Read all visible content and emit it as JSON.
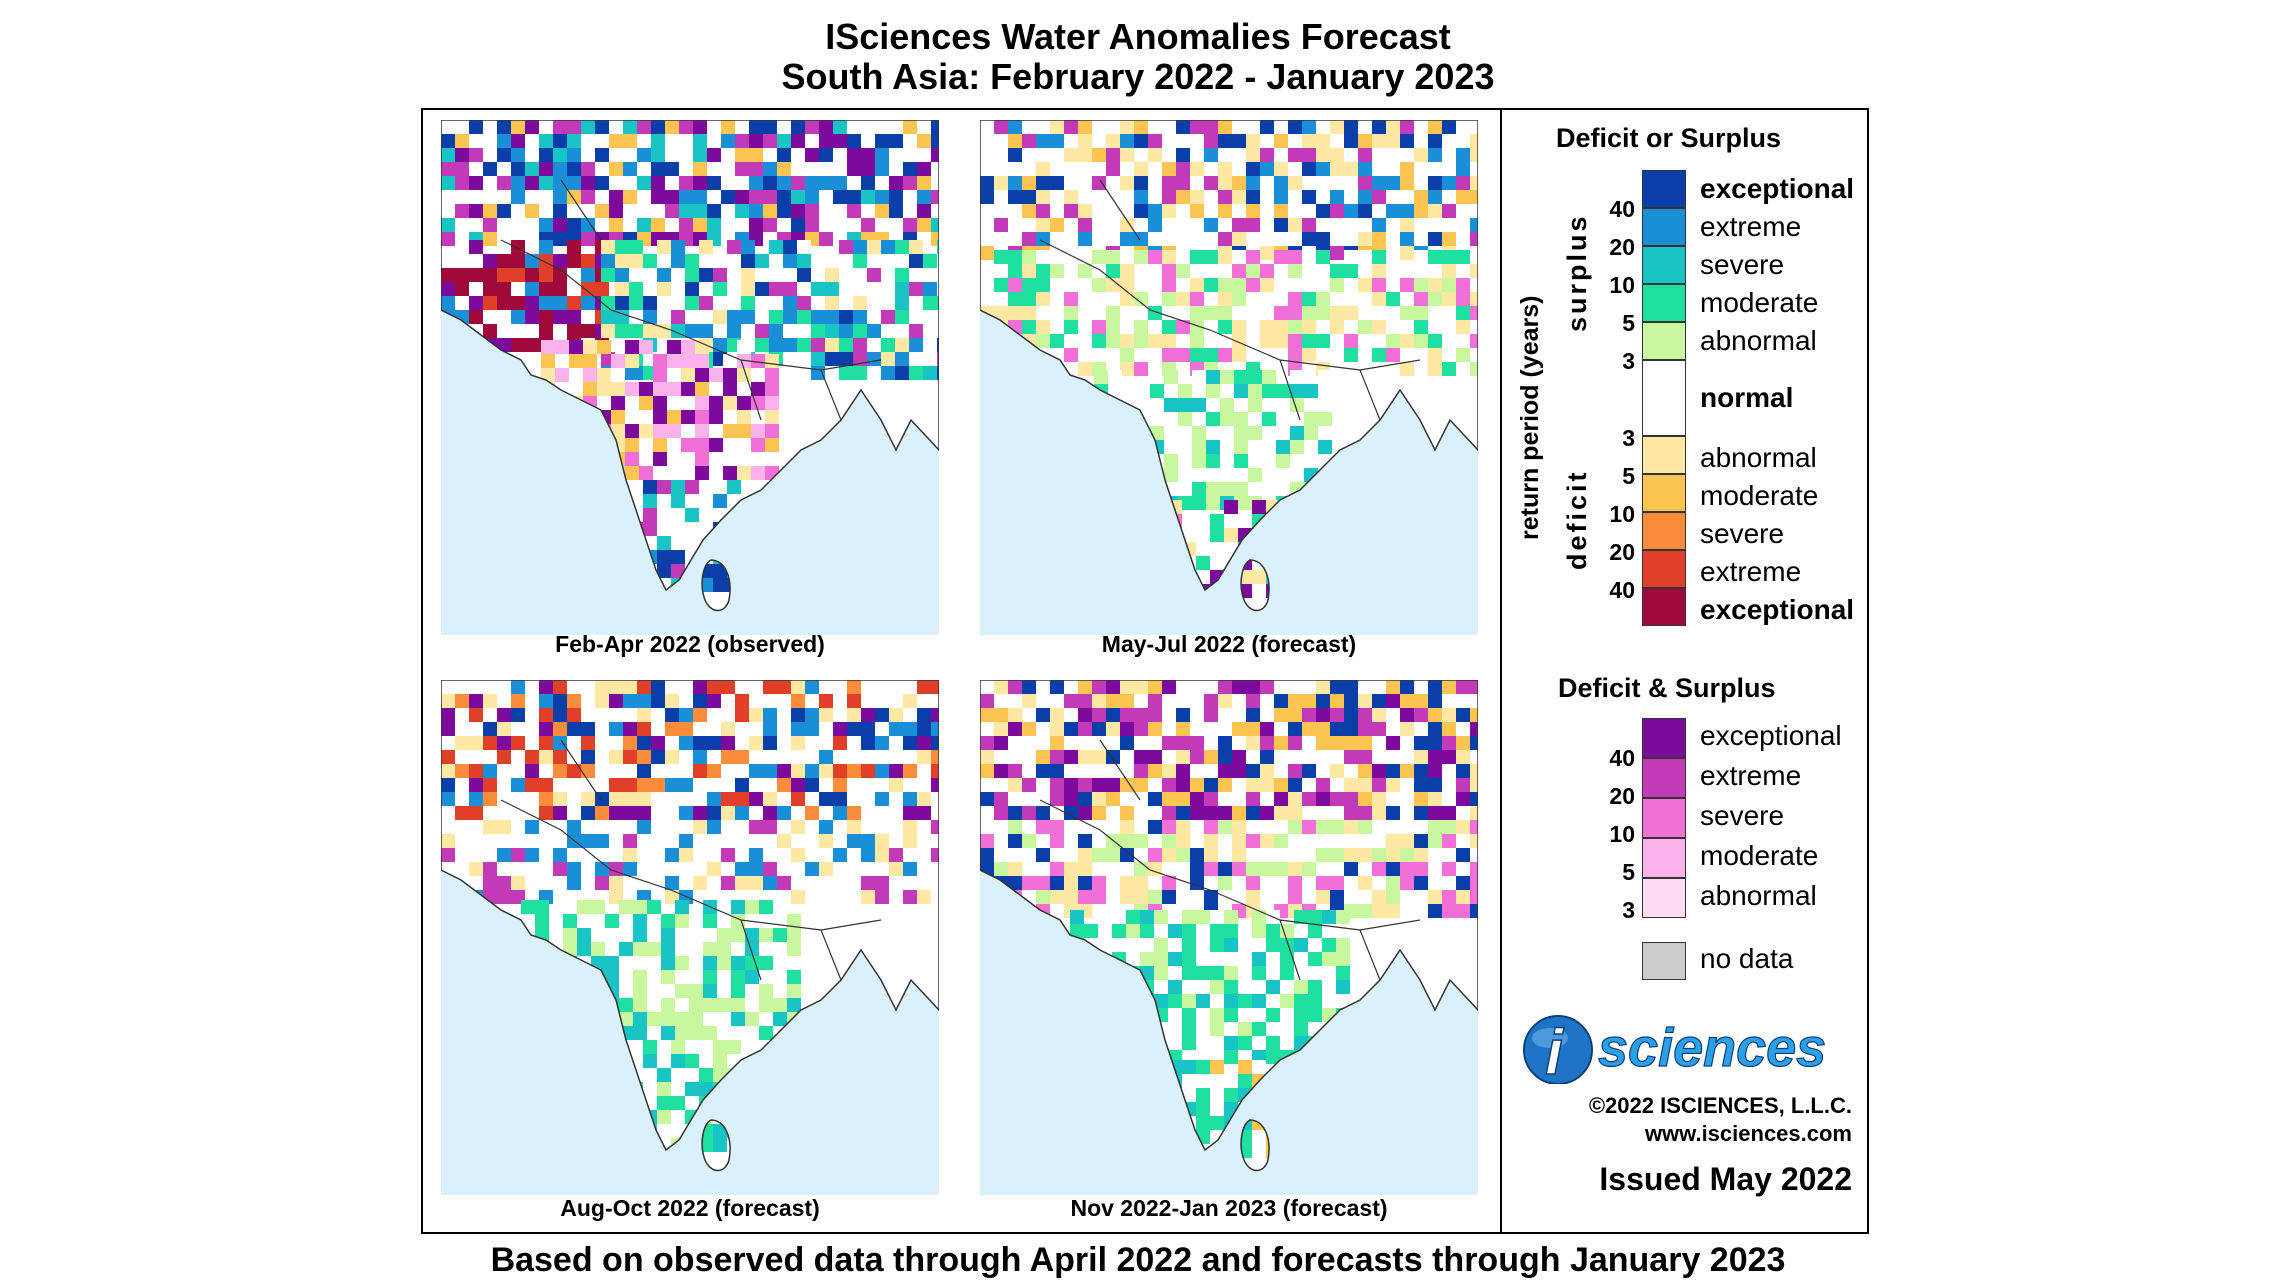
{
  "header": {
    "title_line1": "ISciences Water Anomalies Forecast",
    "title_line2": "South Asia: February 2022 - January 2023"
  },
  "panels": [
    {
      "caption": "Feb-Apr 2022 (observed)"
    },
    {
      "caption": "May-Jul 2022 (forecast)"
    },
    {
      "caption": "Aug-Oct 2022 (forecast)"
    },
    {
      "caption": "Nov 2022-Jan 2023 (forecast)"
    }
  ],
  "legend": {
    "deficit_surplus_title": "Deficit or Surplus",
    "axis_label": "return period (years)",
    "surplus_label": "surplus",
    "deficit_label": "deficit",
    "surplus_classes": [
      {
        "label": "exceptional",
        "color": "#0a3faa"
      },
      {
        "label": "extreme",
        "color": "#1a8fd8"
      },
      {
        "label": "severe",
        "color": "#19c4c4"
      },
      {
        "label": "moderate",
        "color": "#1fe0a0"
      },
      {
        "label": "abnormal",
        "color": "#c8f7a0"
      }
    ],
    "normal_label": "normal",
    "deficit_classes": [
      {
        "label": "abnormal",
        "color": "#fde8a4"
      },
      {
        "label": "moderate",
        "color": "#fcc552"
      },
      {
        "label": "severe",
        "color": "#fa8c3c"
      },
      {
        "label": "extreme",
        "color": "#e0402a"
      },
      {
        "label": "exceptional",
        "color": "#a00a3a"
      }
    ],
    "surplus_ticks": [
      "40",
      "20",
      "10",
      "5",
      "3"
    ],
    "deficit_ticks": [
      "3",
      "5",
      "10",
      "20",
      "40"
    ],
    "both_title": "Deficit & Surplus",
    "both_classes": [
      {
        "label": "exceptional",
        "color": "#7c0a9c"
      },
      {
        "label": "extreme",
        "color": "#c23ab8"
      },
      {
        "label": "severe",
        "color": "#f070d8"
      },
      {
        "label": "moderate",
        "color": "#f9b2ea"
      },
      {
        "label": "abnormal",
        "color": "#fddcf2"
      }
    ],
    "both_ticks": [
      "40",
      "20",
      "10",
      "5",
      "3"
    ],
    "no_data_label": "no data",
    "no_data_color": "#cccccc"
  },
  "branding": {
    "logo_letter": "i",
    "logo_text": "sciences",
    "copyright": "©2022 ISCIENCES, L.L.C.",
    "website": "www.isciences.com",
    "issued": "Issued May 2022"
  },
  "footer": "Based on observed data through April 2022 and forecasts through January 2023",
  "colors": {
    "ocean": "#daf0fa",
    "land_normal": "#ffffff",
    "border": "#333333"
  }
}
